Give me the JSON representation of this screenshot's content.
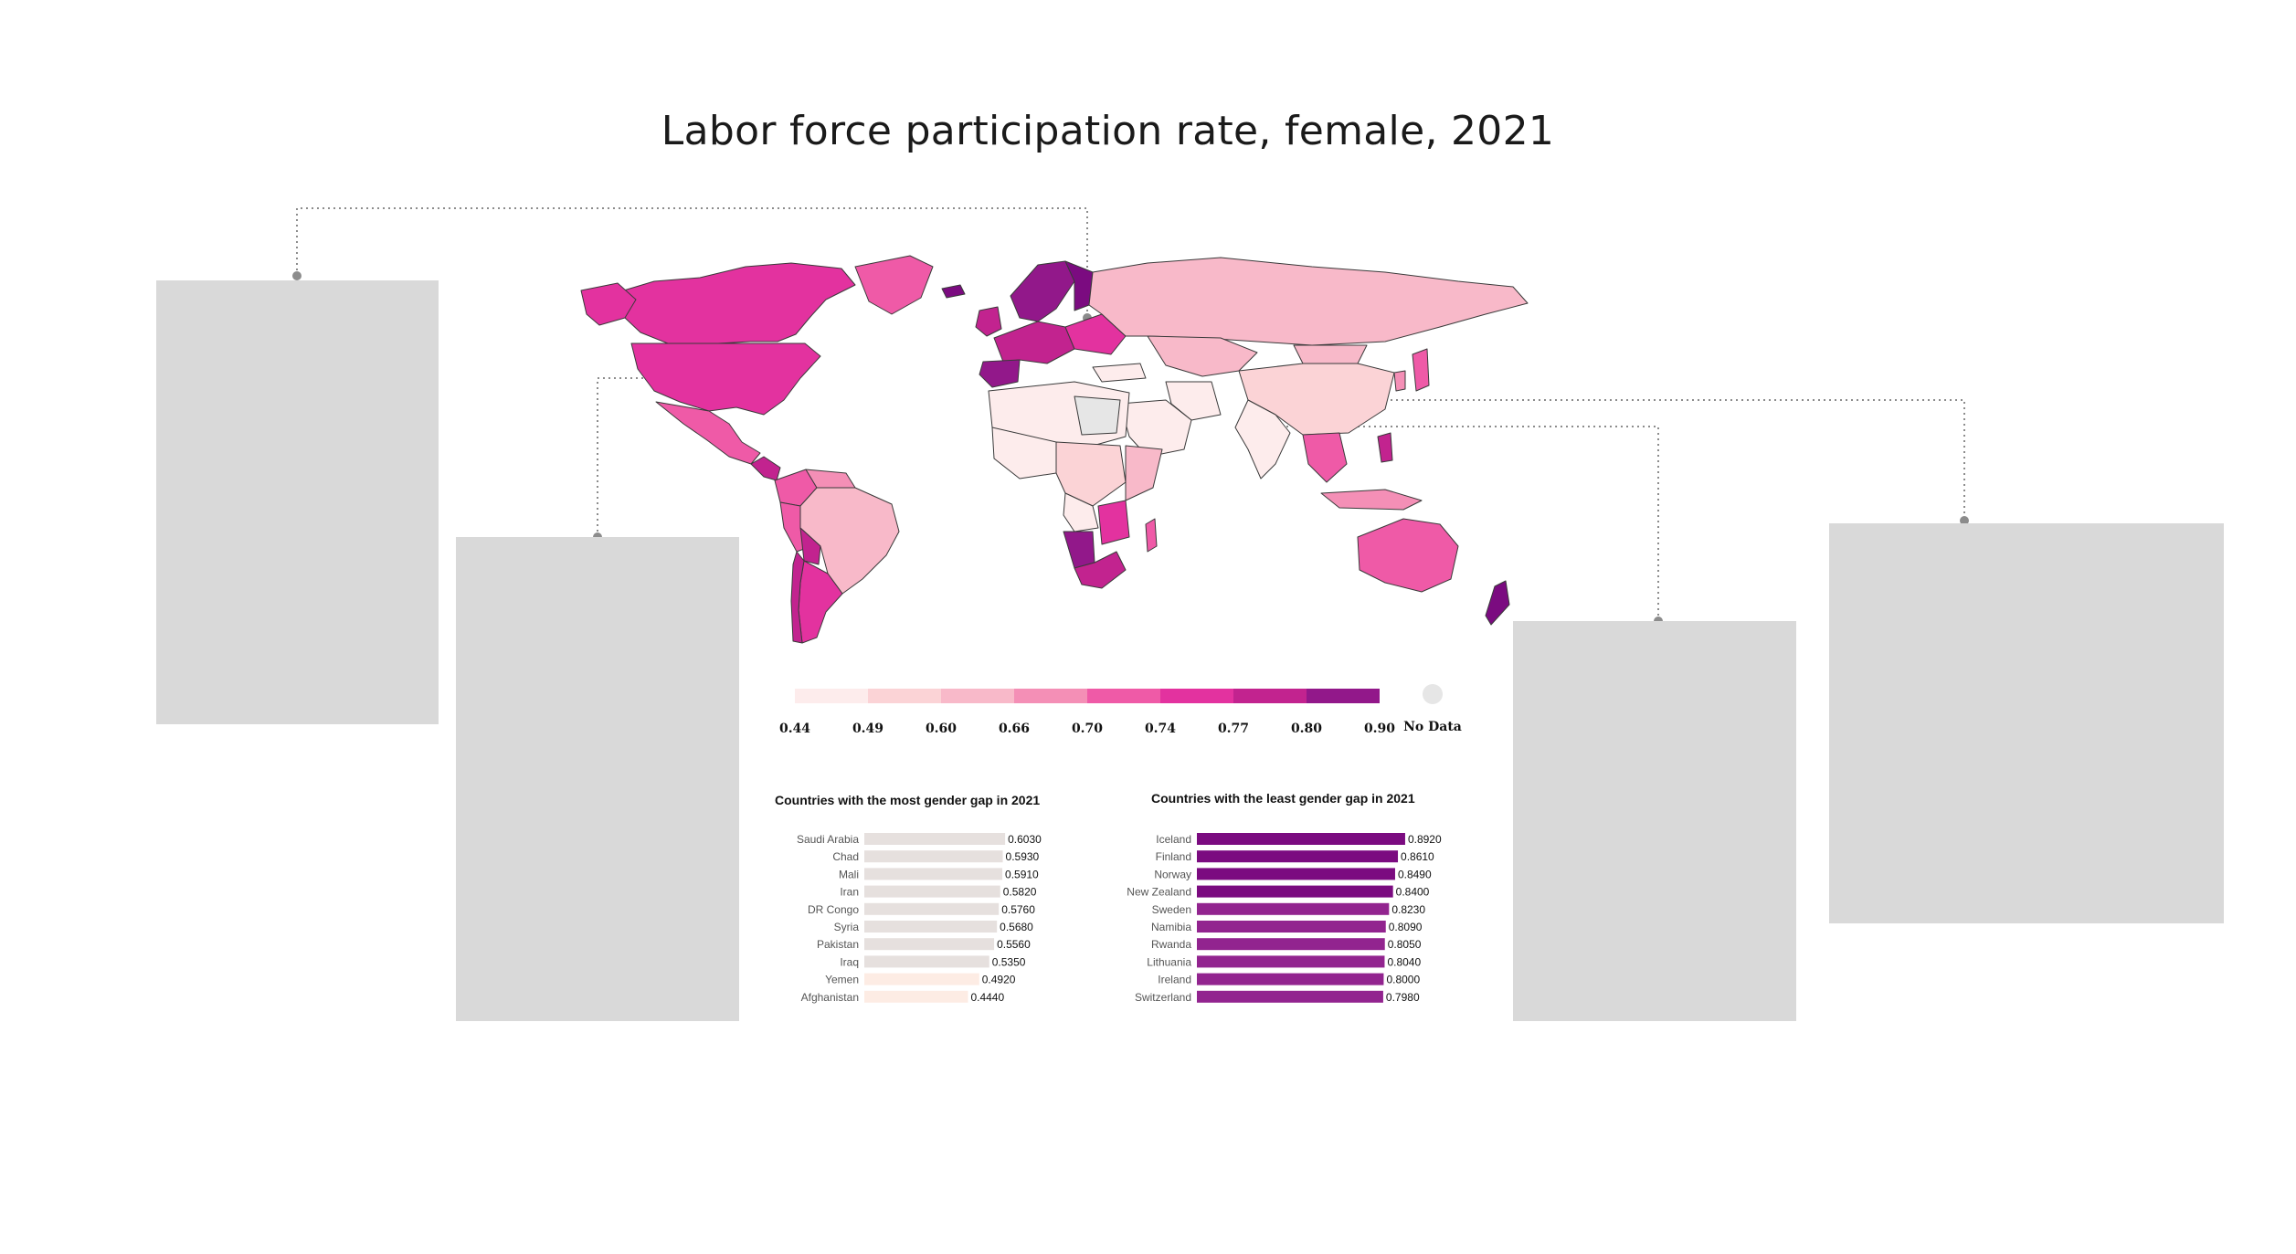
{
  "title": "Labor force participation rate, female, 2021",
  "colors": {
    "panel": "#d9d9d9",
    "connector": "#8c8c8c",
    "no_data": "#e6e6e6"
  },
  "map": {
    "legend": {
      "labels": [
        "0.44",
        "0.49",
        "0.60",
        "0.66",
        "0.70",
        "0.74",
        "0.77",
        "0.80",
        "0.90"
      ],
      "colors": [
        "#fdecec",
        "#fbd3d6",
        "#f8b9c9",
        "#f48fb6",
        "#ef5aa7",
        "#e3329f",
        "#c2238f",
        "#92188a"
      ],
      "no_data_label": "No Data"
    }
  },
  "chart_data": [
    {
      "type": "map",
      "title": "Labor force participation rate, female, 2021",
      "legend_breaks": [
        0.44,
        0.49,
        0.6,
        0.66,
        0.7,
        0.74,
        0.77,
        0.8,
        0.9
      ],
      "legend_placement": "bottom"
    },
    {
      "type": "bar",
      "orientation": "horizontal",
      "title": "Countries with the most gender gap in 2021",
      "categories": [
        "Saudi Arabia",
        "Chad",
        "Mali",
        "Iran",
        "DR Congo",
        "Syria",
        "Pakistan",
        "Iraq",
        "Yemen",
        "Afghanistan"
      ],
      "values": [
        0.603,
        0.593,
        0.591,
        0.582,
        0.576,
        0.568,
        0.556,
        0.535,
        0.492,
        0.444
      ],
      "value_labels": [
        "0.6030",
        "0.5930",
        "0.5910",
        "0.5820",
        "0.5760",
        "0.5680",
        "0.5560",
        "0.5350",
        "0.4920",
        "0.4440"
      ],
      "colors": [
        "#e6e0de",
        "#e6e0de",
        "#e6e0de",
        "#e6e0de",
        "#e6e0de",
        "#e6e0de",
        "#e6e0de",
        "#e6e0de",
        "#fdece4",
        "#fdece4"
      ]
    },
    {
      "type": "bar",
      "orientation": "horizontal",
      "title": "Countries with the least gender gap in 2021",
      "categories": [
        "Iceland",
        "Finland",
        "Norway",
        "New Zealand",
        "Sweden",
        "Namibia",
        "Rwanda",
        "Lithuania",
        "Ireland",
        "Switzerland"
      ],
      "values": [
        0.892,
        0.861,
        0.849,
        0.84,
        0.823,
        0.809,
        0.805,
        0.804,
        0.8,
        0.798
      ],
      "value_labels": [
        "0.8920",
        "0.8610",
        "0.8490",
        "0.8400",
        "0.8230",
        "0.8090",
        "0.8050",
        "0.8040",
        "0.8000",
        "0.7980"
      ],
      "colors": [
        "#7b0b80",
        "#7b0b80",
        "#7b0b80",
        "#7b0b80",
        "#92248f",
        "#92248f",
        "#92248f",
        "#92248f",
        "#92248f",
        "#92248f"
      ]
    }
  ]
}
